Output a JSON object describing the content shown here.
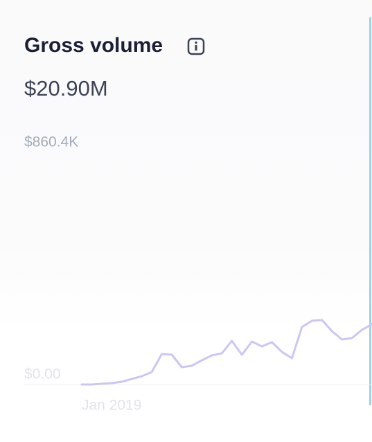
{
  "chart_data": {
    "type": "line",
    "title": "Gross volume",
    "subtitle": "$20.90M",
    "categories": [
      "Jan 2019",
      null,
      null,
      null,
      null,
      null,
      null,
      null,
      null,
      null,
      null,
      null,
      null,
      null,
      null,
      null,
      null,
      null,
      null,
      null,
      null,
      null,
      null,
      null,
      null,
      null,
      null,
      null,
      null,
      null
    ],
    "values": [
      0,
      0,
      2568,
      5137,
      10274,
      20547,
      30821,
      46231,
      113010,
      110442,
      64210,
      69347,
      89894,
      107873,
      115578,
      161809,
      110442,
      159241,
      141262,
      156673,
      120715,
      97599,
      213177,
      236293,
      238862,
      197767,
      166946,
      172083,
      202904,
      223451
    ],
    "color": "#cbc6f6",
    "ylim": [
      0,
      860400
    ],
    "yticks": [
      {
        "value": 0,
        "label": "$0.00"
      },
      {
        "value": 860400,
        "label": "$860.4K"
      }
    ],
    "grid": true
  }
}
